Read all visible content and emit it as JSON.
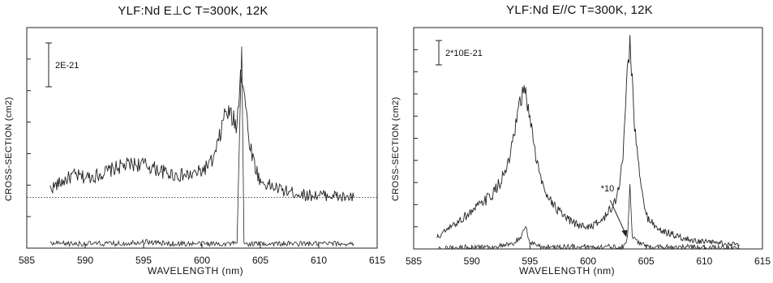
{
  "chart_data": [
    {
      "type": "line",
      "title": "YLF:Nd  E⊥C T=300K, 12K",
      "xlabel": "WAVELENGTH (nm)",
      "ylabel": "CROSS-SECTION (cm2)",
      "x_ticks": [
        "585",
        "590",
        "595",
        "600",
        "605",
        "610",
        "615"
      ],
      "xlim": [
        585,
        615
      ],
      "ylim": [
        0,
        1
      ],
      "scale_bar": "2E-21",
      "grid": false,
      "reference_line_y": 0.23,
      "series": [
        {
          "x": [
            587,
            588,
            589,
            590,
            591,
            592,
            593,
            594,
            595,
            596,
            597,
            598,
            599,
            600,
            601,
            601.5,
            602,
            602.5,
            603,
            603.3,
            603.6,
            604,
            604.5,
            605,
            606,
            607,
            608,
            609,
            610,
            611,
            612,
            613
          ],
          "y": [
            0.27,
            0.3,
            0.33,
            0.32,
            0.33,
            0.35,
            0.37,
            0.38,
            0.38,
            0.36,
            0.34,
            0.33,
            0.33,
            0.35,
            0.4,
            0.5,
            0.62,
            0.6,
            0.55,
            0.82,
            0.72,
            0.5,
            0.38,
            0.3,
            0.28,
            0.26,
            0.25,
            0.24,
            0.24,
            0.24,
            0.23,
            0.23
          ]
        },
        {
          "x": [
            587,
            590,
            593,
            595,
            597,
            600,
            603,
            603.4,
            603.6,
            604,
            606,
            610,
            613
          ],
          "y": [
            0.02,
            0.02,
            0.02,
            0.03,
            0.02,
            0.02,
            0.02,
            0.92,
            0.02,
            0.02,
            0.02,
            0.02,
            0.02
          ]
        }
      ]
    },
    {
      "type": "line",
      "title": "YLF:Nd  E//C  T=300K, 12K",
      "xlabel": "WAVELENGTH (nm)",
      "ylabel": "CROSS-SECTION (cm2)",
      "x_ticks": [
        "585",
        "590",
        "595",
        "600",
        "605",
        "610",
        "615"
      ],
      "xlim": [
        585,
        615
      ],
      "ylim": [
        0,
        1
      ],
      "scale_bar": "2*10E-21",
      "annotation": "*10",
      "grid": false,
      "series": [
        {
          "x": [
            587,
            588,
            589,
            590,
            591,
            592,
            593,
            593.5,
            594,
            594.5,
            595,
            595.5,
            596,
            597,
            598,
            599,
            600,
            601,
            602,
            602.5,
            603,
            603.3,
            603.6,
            604,
            604.5,
            605,
            606,
            607,
            608,
            609,
            610,
            611,
            612,
            613
          ],
          "y": [
            0.05,
            0.09,
            0.13,
            0.17,
            0.21,
            0.26,
            0.36,
            0.46,
            0.62,
            0.72,
            0.6,
            0.42,
            0.3,
            0.2,
            0.14,
            0.11,
            0.1,
            0.12,
            0.18,
            0.24,
            0.4,
            0.75,
            0.95,
            0.55,
            0.3,
            0.15,
            0.09,
            0.07,
            0.05,
            0.04,
            0.03,
            0.03,
            0.02,
            0.02
          ]
        },
        {
          "x": [
            587,
            590,
            592,
            593.5,
            594.3,
            594.6,
            595,
            596,
            598,
            600,
            602,
            603,
            603.4,
            603.6,
            603.8,
            605,
            608,
            613
          ],
          "y": [
            0.0,
            0.01,
            0.01,
            0.02,
            0.06,
            0.1,
            0.03,
            0.01,
            0.01,
            0.01,
            0.01,
            0.01,
            0.05,
            0.3,
            0.05,
            0.01,
            0.01,
            0.0
          ]
        }
      ]
    }
  ]
}
